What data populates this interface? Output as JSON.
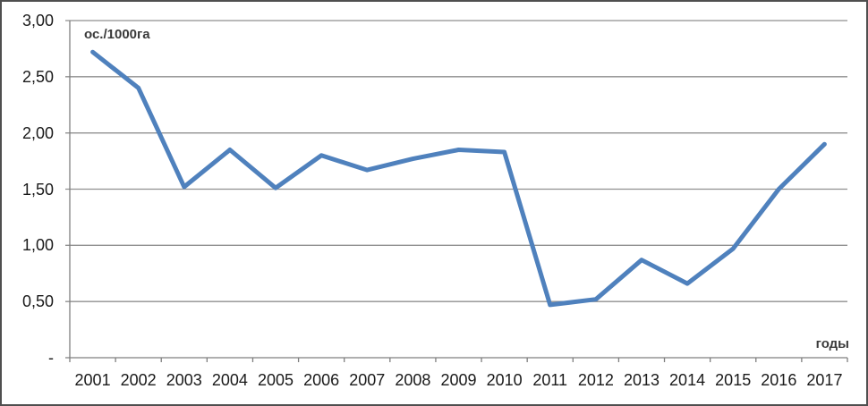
{
  "chart_data": {
    "type": "line",
    "title": "",
    "ylabel": "ос./1000га",
    "xlabel": "годы",
    "categories": [
      "2001",
      "2002",
      "2003",
      "2004",
      "2005",
      "2006",
      "2007",
      "2008",
      "2009",
      "2010",
      "2011",
      "2012",
      "2013",
      "2014",
      "2015",
      "2016",
      "2017"
    ],
    "series": [
      {
        "name": "",
        "values": [
          2.72,
          2.4,
          1.52,
          1.85,
          1.51,
          1.8,
          1.67,
          1.77,
          1.85,
          1.83,
          0.47,
          0.52,
          0.87,
          0.66,
          0.97,
          1.5,
          1.9
        ]
      }
    ],
    "y_ticks": [
      {
        "label": "3,00",
        "value": 3.0
      },
      {
        "label": "2,50",
        "value": 2.5
      },
      {
        "label": "2,00",
        "value": 2.0
      },
      {
        "label": "1,50",
        "value": 1.5
      },
      {
        "label": "1,00",
        "value": 1.0
      },
      {
        "label": "0,50",
        "value": 0.5
      },
      {
        "label": "-",
        "value": 0.0
      }
    ],
    "ylim": [
      0,
      3
    ],
    "grid": true,
    "legend_position": "none",
    "colors": {
      "line": "#4F81BD",
      "grid": "#8f8f8f",
      "axis": "#7f7f7f",
      "text": "#1a1a1a",
      "unit_text": "#3a3a3a"
    }
  }
}
